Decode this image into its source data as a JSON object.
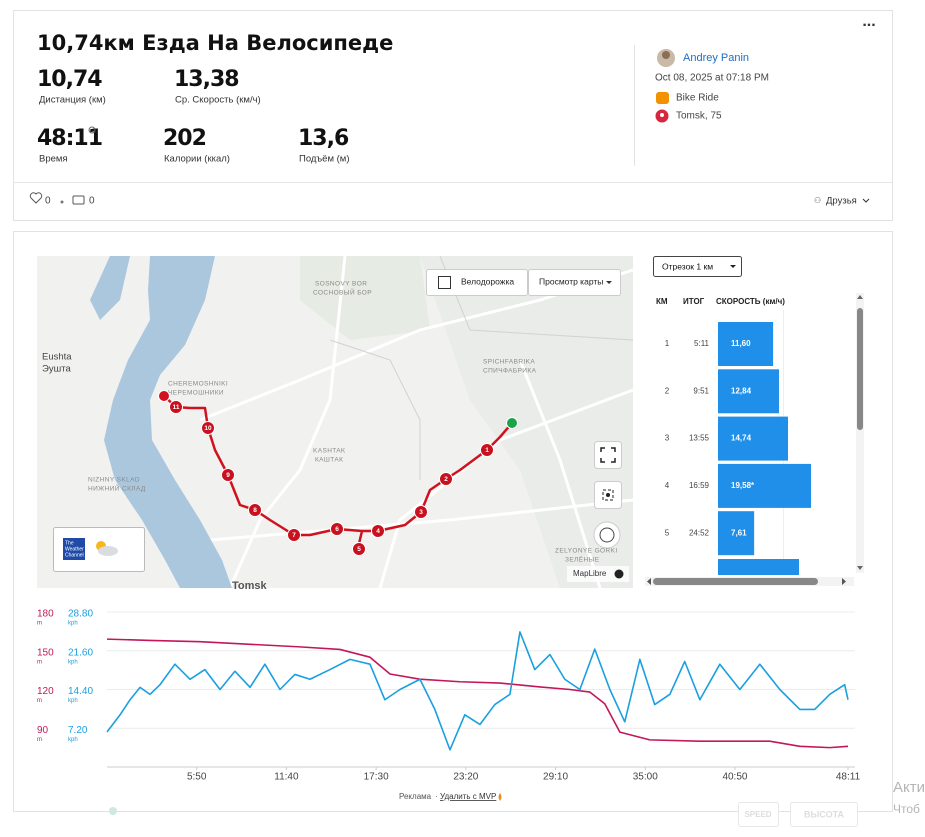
{
  "header": {
    "title": "10,74км Езда На Велосипеде",
    "more": "...",
    "stats": [
      {
        "value": "10,74",
        "label": "Дистанция (км)"
      },
      {
        "value": "13,38",
        "label": "Ср. Скорость (км/ч)"
      },
      {
        "value": "48:11",
        "label": "Время"
      },
      {
        "value": "202",
        "label": "Калории (ккал)"
      },
      {
        "value": "13,6",
        "label": "Подъём (м)"
      }
    ],
    "user": "Andrey Panin",
    "date": "Oct 08, 2025 at 07:18 PM",
    "activity": "Bike Ride",
    "location": "Tomsk, 75"
  },
  "social": {
    "likes": "0",
    "comments": "0",
    "audience": "Друзья"
  },
  "map": {
    "bike_lanes": "Велодорожка",
    "view": "Просмотр карты",
    "attribution": "MapLibre",
    "weather": [
      "The",
      "Weather",
      "Channel"
    ],
    "places": [
      "Eushta",
      "Эушта",
      "CHEREMOSHNIKI",
      "ЧЕРЕМОШНИКИ",
      "SOSNOVY BOR",
      "СОСНОВЫЙ БОР",
      "SPICHFABRIKA",
      "СПИЧФАБРИКА",
      "KASHTAK",
      "КАШТАК",
      "NIZHNY SKLAD",
      "НИЖНИЙ СКЛАД",
      "ZELYONYE GORKI",
      "ЗЕЛЁНЫЕ",
      "Tomsk"
    ],
    "markers": [
      "1",
      "2",
      "3",
      "4",
      "5",
      "6",
      "7",
      "8",
      "9",
      "10",
      "11"
    ]
  },
  "splits": {
    "selector": "Отрезок 1 км",
    "columns": [
      "КМ",
      "ИТОГ",
      "СКОРОСТЬ (км/ч)"
    ],
    "km": [
      1,
      2,
      3,
      4,
      5
    ],
    "total": [
      "5:11",
      "9:51",
      "13:55",
      "16:59",
      "24:52"
    ],
    "speed": [
      11.6,
      12.84,
      14.74,
      19.58,
      7.61
    ],
    "speed_labels": [
      "11,60",
      "12,84",
      "14,74",
      "19,58*",
      "7,61"
    ]
  },
  "chart_data": {
    "type": "line",
    "xlim": [
      0,
      2891
    ],
    "xticks": [
      {
        "value": 350,
        "label": "5:50"
      },
      {
        "value": 700,
        "label": "11:40"
      },
      {
        "value": 1050,
        "label": "17:30"
      },
      {
        "value": 1400,
        "label": "23:20"
      },
      {
        "value": 1750,
        "label": "29:10"
      },
      {
        "value": 2100,
        "label": "35:00"
      },
      {
        "value": 2450,
        "label": "40:50"
      },
      {
        "value": 2891,
        "label": "48:11"
      }
    ],
    "ylim": [
      60,
      180
    ],
    "yticks": [
      90,
      120,
      150,
      180
    ],
    "y_unit": "m",
    "y2lim": [
      0,
      28.8
    ],
    "y2ticks": [
      {
        "value": 7.2,
        "label": "7.20"
      },
      {
        "value": 14.4,
        "label": "14.40"
      },
      {
        "value": 21.6,
        "label": "21.60"
      },
      {
        "value": 28.8,
        "label": "28.80"
      }
    ],
    "y2_unit": "kph",
    "grid": true,
    "series": [
      {
        "color": "#c2185b",
        "x": [
          0,
          168,
          363,
          558,
          753,
          909,
          1026,
          1104,
          1221,
          1377,
          1533,
          1689,
          1806,
          1884,
          1942,
          2001,
          2118,
          2313,
          2469,
          2586,
          2703,
          2820,
          2891
        ],
        "values": [
          159,
          158,
          157,
          155,
          153,
          151,
          145,
          132,
          128,
          126,
          125,
          122,
          120,
          118,
          109,
          87,
          81,
          80,
          80,
          80,
          76,
          75,
          76
        ]
      },
      {
        "color": "#1a9fe0",
        "axis": "y2",
        "x": [
          0,
          51,
          90,
          129,
          168,
          207,
          265,
          324,
          382,
          441,
          499,
          558,
          616,
          675,
          733,
          792,
          870,
          948,
          1026,
          1084,
          1143,
          1221,
          1279,
          1338,
          1396,
          1455,
          1513,
          1572,
          1611,
          1669,
          1728,
          1786,
          1845,
          1903,
          1962,
          2020,
          2079,
          2137,
          2196,
          2254,
          2313,
          2391,
          2469,
          2547,
          2625,
          2703,
          2761,
          2820,
          2878,
          2891
        ],
        "values": [
          6.5,
          9.7,
          12.5,
          14.8,
          13.5,
          15.3,
          19.1,
          16.3,
          18.1,
          14.4,
          17.8,
          14.8,
          19.1,
          14.4,
          17.2,
          16.3,
          18.1,
          20.0,
          19.1,
          12.5,
          14.4,
          16.3,
          10.7,
          3.2,
          9.7,
          7.9,
          11.6,
          13.5,
          25.1,
          18.1,
          20.9,
          16.3,
          14.4,
          21.9,
          14.4,
          8.4,
          20.0,
          11.6,
          13.5,
          19.6,
          12.5,
          19.1,
          14.4,
          19.1,
          14.4,
          10.7,
          10.7,
          13.5,
          15.3,
          12.5
        ]
      }
    ]
  },
  "footer": {
    "ad": "Реклама",
    "separator": "·",
    "remove_ads": "Удалить с MVP",
    "buttons": [
      "SPEED",
      "ВЫСОТА"
    ]
  },
  "overlay": [
    "Акти",
    "Чтоб"
  ]
}
